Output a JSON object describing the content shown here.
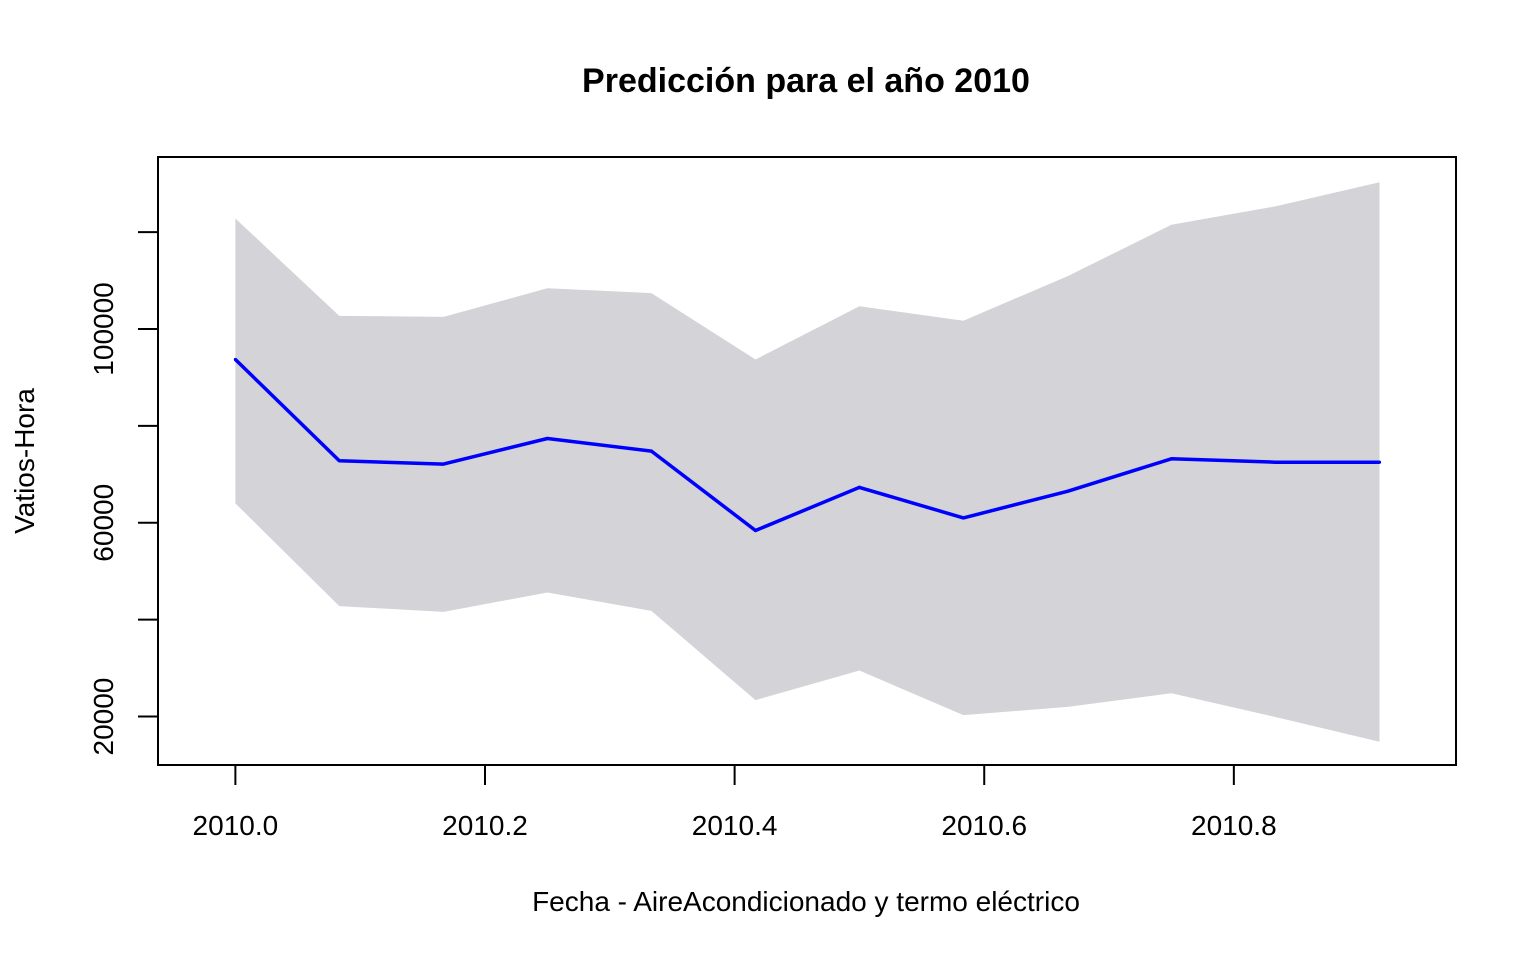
{
  "chart_data": {
    "type": "line",
    "title": "Predicción para el año 2010",
    "xlabel": "Fecha - AireAcondicionado y termo eléctrico",
    "ylabel": "Vatios-Hora",
    "xlim": [
      2009.938,
      2010.978
    ],
    "ylim": [
      10000,
      135500
    ],
    "x_ticks": [
      2010.0,
      2010.2,
      2010.4,
      2010.6,
      2010.8
    ],
    "x_tick_labels": [
      "2010.0",
      "2010.2",
      "2010.4",
      "2010.6",
      "2010.8"
    ],
    "y_ticks": [
      20000,
      40000,
      60000,
      80000,
      100000,
      120000
    ],
    "y_tick_labels": [
      "20000",
      "",
      "60000",
      "",
      "100000",
      ""
    ],
    "grid": false,
    "x": [
      2010.0,
      2010.0833,
      2010.1667,
      2010.25,
      2010.3333,
      2010.4167,
      2010.5,
      2010.5833,
      2010.6667,
      2010.75,
      2010.8333,
      2010.9167
    ],
    "series": [
      {
        "role": "forecast",
        "color": "#0000ff",
        "values": [
          93700,
          72800,
          72100,
          77400,
          74800,
          58400,
          67300,
          61000,
          66500,
          73200,
          72500,
          72500
        ]
      },
      {
        "role": "interval-upper",
        "color": "#d3d3d8",
        "values": [
          122800,
          102700,
          102500,
          108400,
          107400,
          93700,
          104700,
          101700,
          110900,
          121500,
          125300,
          130300
        ]
      },
      {
        "role": "interval-lower",
        "color": "#d3d3d8",
        "values": [
          64000,
          42800,
          41600,
          45600,
          41800,
          23400,
          29500,
          20300,
          22000,
          24800,
          19900,
          14800
        ]
      }
    ]
  }
}
